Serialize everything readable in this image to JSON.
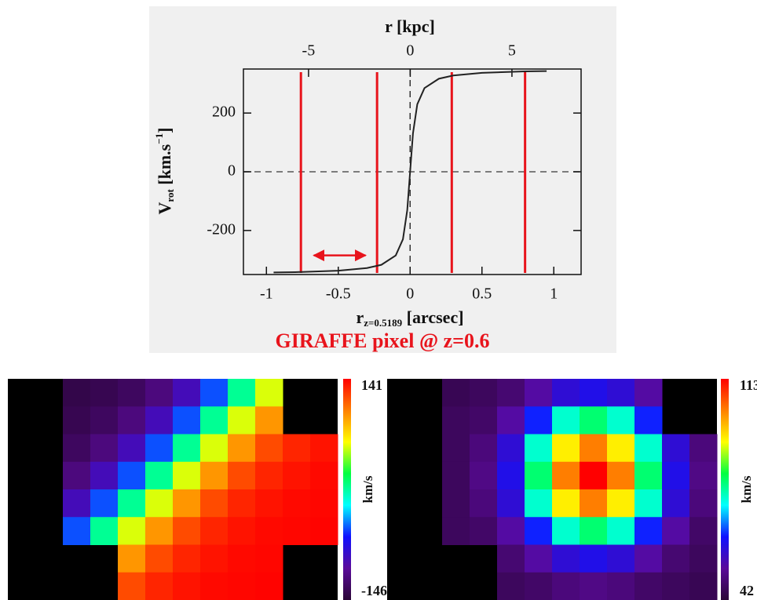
{
  "chart_data": [
    {
      "type": "line",
      "x2_label": "r [kpc]",
      "x_label": [
        "r",
        "z=0.5189",
        " [arcsec]"
      ],
      "y_label": [
        "V",
        "rot",
        " [km.s",
        "−1",
        "]"
      ],
      "caption": "GIRAFFE pixel @ z=0.6",
      "x": [
        -0.95,
        -0.8,
        -0.5,
        -0.3,
        -0.2,
        -0.1,
        -0.05,
        -0.02,
        0,
        0.02,
        0.05,
        0.1,
        0.2,
        0.3,
        0.5,
        0.8,
        0.95
      ],
      "values": [
        -343,
        -342,
        -337,
        -328,
        -317,
        -285,
        -230,
        -131,
        0,
        131,
        230,
        285,
        317,
        328,
        337,
        342,
        343
      ],
      "color": "#222222",
      "xlim": [
        -1.16,
        1.19
      ],
      "xticks": [
        -1,
        -0.5,
        0,
        0.5,
        1
      ],
      "x2lim": [
        -8.2,
        8.4
      ],
      "x2ticks": [
        -5,
        0,
        5
      ],
      "ylim": [
        -350,
        350
      ],
      "yticks": [
        -200,
        0,
        200
      ],
      "red_lines": {
        "color": "#e8141c",
        "x": [
          -0.76,
          -0.23,
          0.29,
          0.8
        ]
      },
      "arrow": {
        "color": "#e8141c",
        "x": [
          -0.67,
          -0.31
        ],
        "y": -285
      }
    },
    {
      "type": "heatmap",
      "colorbar_label": "km/s",
      "zlim": [
        -146,
        141
      ],
      "zticks": [
        -146,
        141
      ],
      "colormap": [
        "#2a0536",
        "#5a0a9a",
        "#1010ff",
        "#00ffff",
        "#00ff40",
        "#ffff00",
        "#ff8000",
        "#ff0000"
      ],
      "values": [
        [
          null,
          null,
          -138,
          -135,
          -129,
          -117,
          -93,
          -53,
          0,
          53,
          null,
          null
        ],
        [
          null,
          null,
          -135,
          -129,
          -117,
          -93,
          -53,
          0,
          53,
          93,
          null,
          null
        ],
        [
          null,
          null,
          -129,
          -117,
          -93,
          -53,
          0,
          53,
          93,
          117,
          129,
          135
        ],
        [
          null,
          null,
          -117,
          -93,
          -53,
          0,
          53,
          93,
          117,
          129,
          135,
          138
        ],
        [
          null,
          null,
          -93,
          -53,
          0,
          53,
          93,
          117,
          129,
          135,
          138,
          139
        ],
        [
          null,
          null,
          -53,
          0,
          53,
          93,
          117,
          129,
          135,
          138,
          139,
          140
        ],
        [
          null,
          null,
          null,
          null,
          93,
          117,
          129,
          135,
          138,
          139,
          null,
          null
        ],
        [
          null,
          null,
          null,
          null,
          117,
          129,
          135,
          138,
          139,
          140,
          null,
          null
        ]
      ]
    },
    {
      "type": "heatmap",
      "colorbar_label": "km/s",
      "zlim": [
        42,
        113
      ],
      "zticks": [
        42,
        113
      ],
      "colormap": [
        "#2a0536",
        "#5a0a9a",
        "#1010ff",
        "#00ffff",
        "#00ff40",
        "#ffff00",
        "#ff8000",
        "#ff0000"
      ],
      "values": [
        [
          null,
          null,
          45,
          46,
          48,
          53,
          58,
          60,
          58,
          53,
          null,
          null
        ],
        [
          null,
          null,
          46,
          47,
          53,
          63,
          75,
          80,
          75,
          63,
          null,
          null
        ],
        [
          null,
          null,
          46,
          49,
          58,
          75,
          94,
          103,
          94,
          75,
          58,
          49
        ],
        [
          null,
          null,
          46,
          50,
          60,
          80,
          103,
          113,
          103,
          80,
          60,
          50
        ],
        [
          null,
          null,
          46,
          49,
          58,
          75,
          94,
          103,
          94,
          75,
          58,
          49
        ],
        [
          null,
          null,
          46,
          47,
          53,
          63,
          75,
          80,
          75,
          63,
          53,
          47
        ],
        [
          null,
          null,
          null,
          null,
          48,
          53,
          58,
          60,
          58,
          53,
          48,
          46
        ],
        [
          null,
          null,
          null,
          null,
          46,
          47,
          49,
          50,
          49,
          47,
          46,
          45
        ]
      ]
    }
  ]
}
